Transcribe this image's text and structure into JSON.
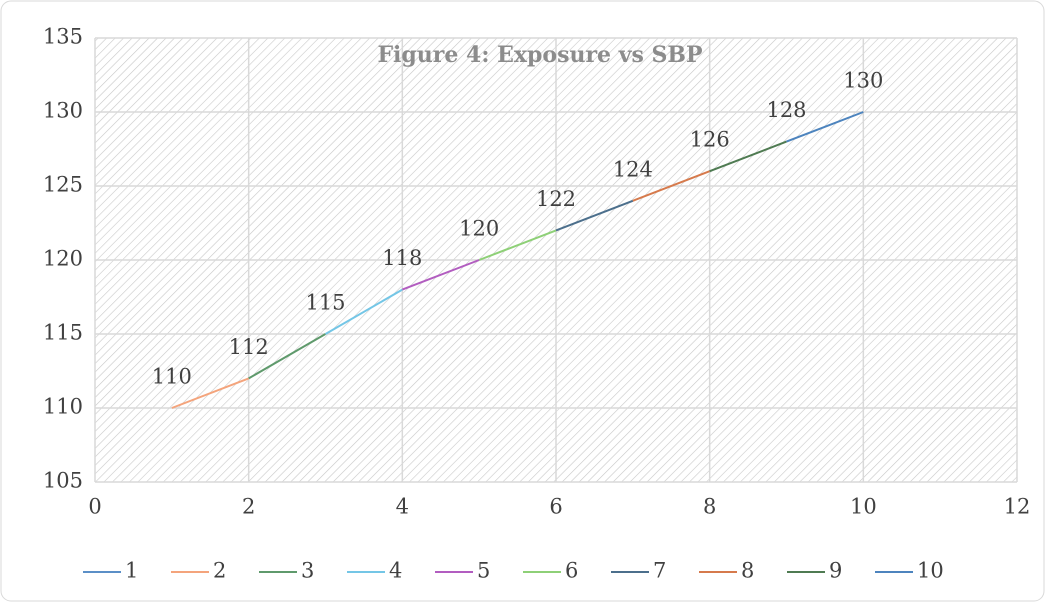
{
  "chart_data": {
    "type": "line",
    "title": "Figure 4: Exposure vs SBP",
    "x": [
      1,
      2,
      3,
      4,
      5,
      6,
      7,
      8,
      9,
      10
    ],
    "series": [
      {
        "name": "1",
        "color": "#5b8fc7",
        "values": [
          110,
          null,
          null,
          null,
          null,
          null,
          null,
          null,
          null,
          null
        ]
      },
      {
        "name": "2",
        "color": "#f4a47c",
        "values": [
          110,
          112,
          null,
          null,
          null,
          null,
          null,
          null,
          null,
          null
        ]
      },
      {
        "name": "3",
        "color": "#5f9a6c",
        "values": [
          null,
          112,
          115,
          null,
          null,
          null,
          null,
          null,
          null,
          null
        ]
      },
      {
        "name": "4",
        "color": "#74c6e6",
        "values": [
          null,
          null,
          115,
          118,
          null,
          null,
          null,
          null,
          null,
          null
        ]
      },
      {
        "name": "5",
        "color": "#b25dc0",
        "values": [
          null,
          null,
          null,
          118,
          120,
          null,
          null,
          null,
          null,
          null
        ]
      },
      {
        "name": "6",
        "color": "#8ed077",
        "values": [
          null,
          null,
          null,
          null,
          120,
          122,
          null,
          null,
          null,
          null
        ]
      },
      {
        "name": "7",
        "color": "#4c6f8c",
        "values": [
          null,
          null,
          null,
          null,
          null,
          122,
          124,
          null,
          null,
          null
        ]
      },
      {
        "name": "8",
        "color": "#d67a4c",
        "values": [
          null,
          null,
          null,
          null,
          null,
          null,
          124,
          126,
          null,
          null
        ]
      },
      {
        "name": "9",
        "color": "#4f7b52",
        "values": [
          null,
          null,
          null,
          null,
          null,
          null,
          null,
          126,
          128,
          null
        ]
      },
      {
        "name": "10",
        "color": "#4d84be",
        "values": [
          null,
          null,
          null,
          null,
          null,
          null,
          null,
          null,
          128,
          130
        ]
      }
    ],
    "xlim": [
      0,
      12
    ],
    "xticks": [
      0,
      2,
      4,
      6,
      8,
      10,
      12
    ],
    "ylim": [
      105,
      135
    ],
    "yticks": [
      105,
      110,
      115,
      120,
      125,
      130,
      135
    ],
    "grid": true,
    "legend": "bottom"
  }
}
